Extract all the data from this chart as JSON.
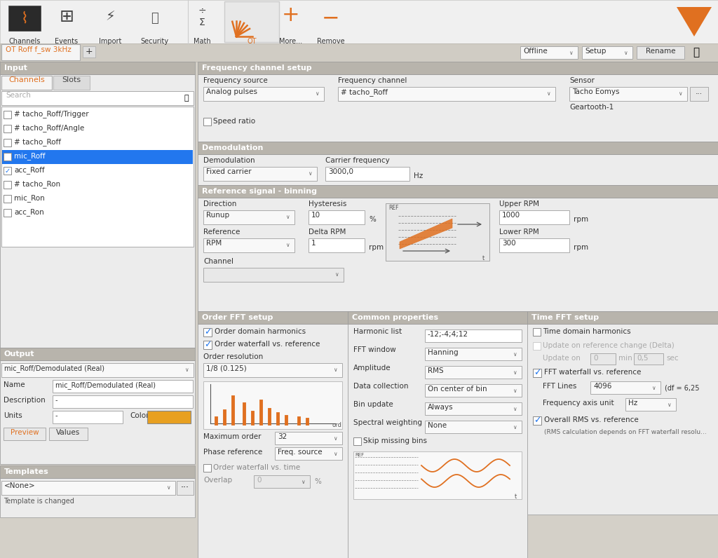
{
  "tab_name": "OT Roff f_sw 3kHz",
  "channel_list": [
    "# tacho_Roff/Trigger",
    "# tacho_Roff/Angle",
    "# tacho_Roff",
    "mic_Roff",
    "acc_Roff",
    "# tacho_Ron",
    "mic_Ron",
    "acc_Ron"
  ],
  "output_name": "mic_Roff/Demodulated (Real)",
  "output_color": "#e8a020",
  "freq_source_value": "Analog pulses",
  "freq_channel_value": "# tacho_Roff",
  "sensor_value": "Tacho Eomys",
  "sensor_sub": "Geartooth-1",
  "demod_value": "Fixed carrier",
  "carrier_value": "3000,0",
  "direction_value": "Runup",
  "hysteresis_value": "10",
  "upper_rpm_value": "1000",
  "reference_value": "RPM",
  "delta_rpm_value": "1",
  "lower_rpm_value": "300",
  "order_resolution_value": "1/8 (0.125)",
  "max_order_value": "32",
  "phase_ref_value": "Freq. source",
  "overlap_value": "0",
  "harmonic_list_value": "-12;-4;4;12",
  "fft_window_value": "Hanning",
  "amplitude_value": "RMS",
  "data_collection_value": "On center of bin",
  "bin_update_value": "Always",
  "spectral_weight_value": "None",
  "fft_lines_value": "4096",
  "freq_axis_value": "Hz",
  "bg_color": "#d4d0c8",
  "panel_bg": "#ececec",
  "header_bg": "#b8b4ac",
  "white": "#ffffff",
  "blue_sel": "#2277ee",
  "orange": "#e07020",
  "toolbar_bg": "#f0f0f0",
  "border": "#aaaaaa",
  "disabled": "#aaaaaa"
}
